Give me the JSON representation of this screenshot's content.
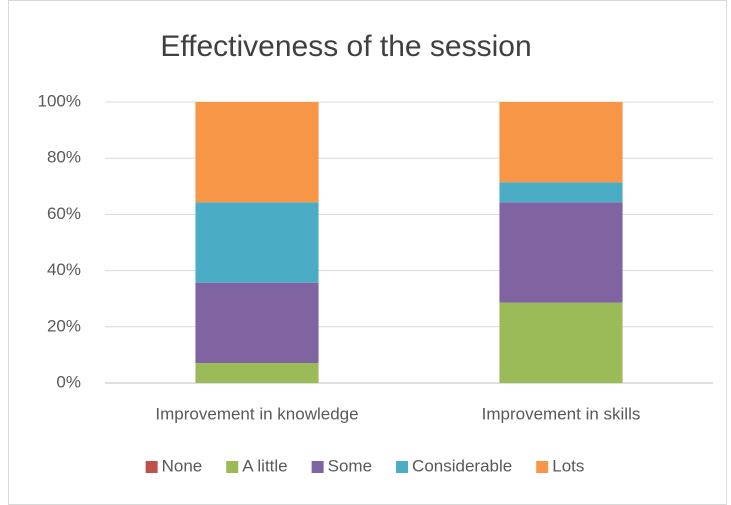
{
  "chart_data": {
    "type": "stacked_bar",
    "title": "Effectiveness of the session",
    "categories": [
      "Improvement in knowledge",
      "Improvement in skills"
    ],
    "series": [
      {
        "name": "None",
        "color": "#c0504d",
        "values": [
          0,
          0
        ]
      },
      {
        "name": "A little",
        "color": "#9bbb59",
        "values": [
          7.1,
          28.6
        ]
      },
      {
        "name": "Some",
        "color": "#8064a2",
        "values": [
          28.6,
          35.7
        ]
      },
      {
        "name": "Considerable",
        "color": "#4bacc6",
        "values": [
          28.6,
          7.1
        ]
      },
      {
        "name": "Lots",
        "color": "#f79646",
        "values": [
          35.7,
          28.6
        ]
      }
    ],
    "ylim": [
      0,
      100
    ],
    "yticks": [
      {
        "value": 0,
        "label": "0%"
      },
      {
        "value": 20,
        "label": "20%"
      },
      {
        "value": 40,
        "label": "40%"
      },
      {
        "value": 60,
        "label": "60%"
      },
      {
        "value": 80,
        "label": "80%"
      },
      {
        "value": 100,
        "label": "100%"
      }
    ],
    "grid": true,
    "legend": "bottom"
  }
}
